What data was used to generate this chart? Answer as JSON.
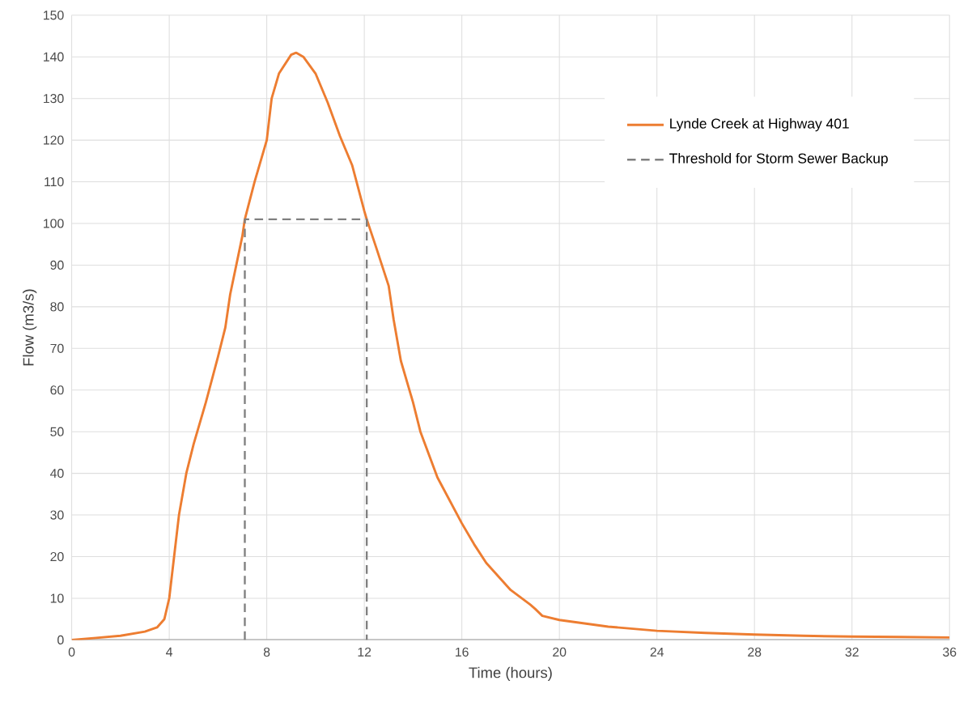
{
  "chart_data": {
    "type": "line",
    "xlabel": "Time (hours)",
    "ylabel": "Flow (m3/s)",
    "xlim": [
      0,
      36
    ],
    "ylim": [
      0,
      150
    ],
    "xticks": [
      0,
      4,
      8,
      12,
      16,
      20,
      24,
      28,
      32,
      36
    ],
    "yticks": [
      0,
      10,
      20,
      30,
      40,
      50,
      60,
      70,
      80,
      90,
      100,
      110,
      120,
      130,
      140,
      150
    ],
    "grid": true,
    "legend": "top right",
    "marker": "none",
    "series": [
      {
        "name": "Lynde Creek at Highway 401",
        "color": "#ed7d31",
        "line_style": "solid",
        "x": [
          0,
          1,
          2,
          3,
          3.5,
          3.8,
          4.0,
          4.2,
          4.4,
          4.7,
          5,
          5.5,
          6,
          6.3,
          6.5,
          7,
          7.1,
          7.5,
          8,
          8.2,
          8.5,
          9,
          9.2,
          9.5,
          10,
          10.5,
          11,
          11.5,
          12,
          12.1,
          12.5,
          13,
          13.2,
          13.5,
          14,
          14.3,
          15,
          16,
          16.5,
          17,
          18,
          18.8,
          19,
          19.3,
          20,
          22,
          24,
          26,
          28,
          30,
          32,
          34,
          36
        ],
        "values": [
          0,
          0.5,
          1,
          2,
          3,
          5,
          10,
          20,
          30,
          40,
          47,
          57,
          68,
          75,
          83,
          97,
          101,
          110,
          120,
          130,
          136,
          140.5,
          141,
          140,
          136,
          129,
          121,
          114,
          103,
          101,
          94,
          85,
          77,
          67,
          57,
          50,
          39,
          28,
          23,
          18.5,
          12,
          8.5,
          7.5,
          5.8,
          4.8,
          3.2,
          2.2,
          1.7,
          1.3,
          1.0,
          0.8,
          0.7,
          0.6
        ]
      },
      {
        "name": "Threshold for Storm Sewer Backup",
        "color": "#808080",
        "line_style": "dashed",
        "x": [
          7.1,
          7.1,
          12.1,
          12.1
        ],
        "values": [
          0,
          101,
          101,
          0
        ]
      }
    ]
  }
}
